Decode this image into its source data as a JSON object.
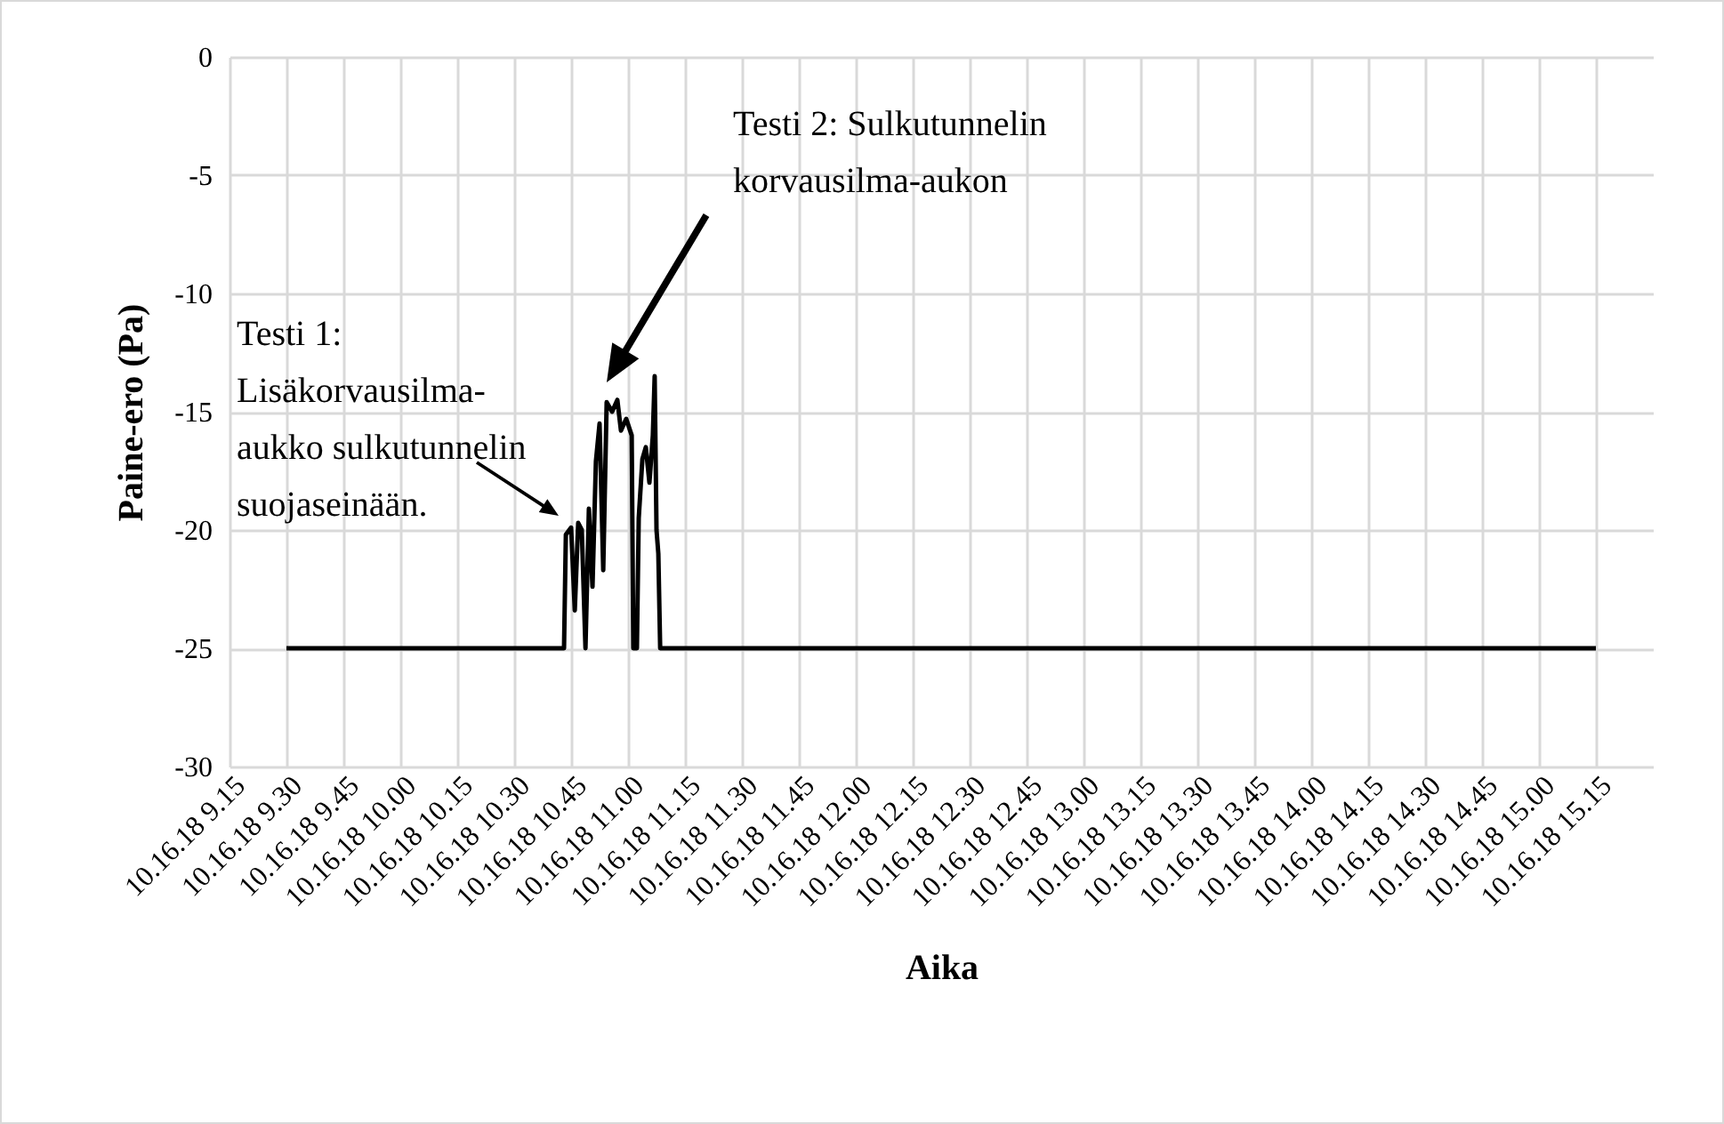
{
  "chart_data": {
    "type": "line",
    "xlabel": "Aika",
    "ylabel": "Paine-ero (Pa)",
    "x": [
      "--10-16T09:30:00",
      "--10-16T10:43:08",
      "--10-16T10:43:37",
      "--10-16T10:45:00",
      "--10-16T10:45:58",
      "--10-16T10:46:52",
      "--10-16T10:47:49",
      "--10-16T10:48:47",
      "--10-16T10:49:41",
      "--10-16T10:50:38",
      "--10-16T10:51:32",
      "--10-16T10:52:30",
      "--10-16T10:53:28",
      "--10-16T10:54:22",
      "--10-16T10:55:48",
      "--10-16T10:57:11",
      "--10-16T10:58:08",
      "--10-16T10:59:31",
      "--10-16T11:00:58",
      "--10-16T11:01:23",
      "--10-16T11:02:20",
      "--10-16T11:02:49",
      "--10-16T11:03:47",
      "--10-16T11:04:41",
      "--10-16T11:05:38",
      "--10-16T11:06:32",
      "--10-16T11:07:01",
      "--10-16T11:07:30",
      "--10-16T11:07:59",
      "--10-16T11:08:28",
      "--10-16T15:15:00"
    ],
    "series": [
      {
        "color": "#000000",
        "values": [
          -25,
          -25,
          -20.2,
          -19.9,
          -23.4,
          -19.7,
          -20,
          -25,
          -19.1,
          -22.4,
          -17.1,
          -15.5,
          -21.7,
          -14.6,
          -15,
          -14.5,
          -15.8,
          -15.3,
          -16,
          -25,
          -25,
          -19.5,
          -17,
          -16.5,
          -18,
          -16,
          -13.5,
          -20,
          -21,
          -25,
          -25
        ]
      }
    ],
    "xlim": [
      "--10-16T09:15",
      "--10-16T15:30"
    ],
    "xticks": [
      {
        "value": "--10-16T09:15",
        "label": "10.16.18 9.15"
      },
      {
        "value": "--10-16T09:30",
        "label": "10.16.18 9.30"
      },
      {
        "value": "--10-16T09:45",
        "label": "10.16.18 9.45"
      },
      {
        "value": "--10-16T10:00",
        "label": "10.16.18 10.00"
      },
      {
        "value": "--10-16T10:15",
        "label": "10.16.18 10.15"
      },
      {
        "value": "--10-16T10:30",
        "label": "10.16.18 10.30"
      },
      {
        "value": "--10-16T10:45",
        "label": "10.16.18 10.45"
      },
      {
        "value": "--10-16T11:00",
        "label": "10.16.18 11.00"
      },
      {
        "value": "--10-16T11:15",
        "label": "10.16.18 11.15"
      },
      {
        "value": "--10-16T11:30",
        "label": "10.16.18 11.30"
      },
      {
        "value": "--10-16T11:45",
        "label": "10.16.18 11.45"
      },
      {
        "value": "--10-16T12:00",
        "label": "10.16.18 12.00"
      },
      {
        "value": "--10-16T12:15",
        "label": "10.16.18 12.15"
      },
      {
        "value": "--10-16T12:30",
        "label": "10.16.18 12.30"
      },
      {
        "value": "--10-16T12:45",
        "label": "10.16.18 12.45"
      },
      {
        "value": "--10-16T13:00",
        "label": "10.16.18 13.00"
      },
      {
        "value": "--10-16T13:15",
        "label": "10.16.18 13.15"
      },
      {
        "value": "--10-16T13:30",
        "label": "10.16.18 13.30"
      },
      {
        "value": "--10-16T13:45",
        "label": "10.16.18 13.45"
      },
      {
        "value": "--10-16T14:00",
        "label": "10.16.18 14.00"
      },
      {
        "value": "--10-16T14:15",
        "label": "10.16.18 14.15"
      },
      {
        "value": "--10-16T14:30",
        "label": "10.16.18 14.30"
      },
      {
        "value": "--10-16T14:45",
        "label": "10.16.18 14.45"
      },
      {
        "value": "--10-16T15:00",
        "label": "10.16.18 15.00"
      },
      {
        "value": "--10-16T15:15",
        "label": "10.16.18 15.15"
      }
    ],
    "ylim": [
      -30,
      0
    ],
    "yticks": [
      -30,
      -25,
      -20,
      -15,
      -10,
      -5,
      0
    ],
    "grid": true,
    "legend": false,
    "marker": "none",
    "line_style": "solid",
    "annotations": [
      "Testi 1:\nLisäkorvausilma-\naukko sulkutunnelin\nsuojaseinään.",
      "Testi 2: Sulkutunnelin\nkorvausilma-aukon"
    ]
  }
}
